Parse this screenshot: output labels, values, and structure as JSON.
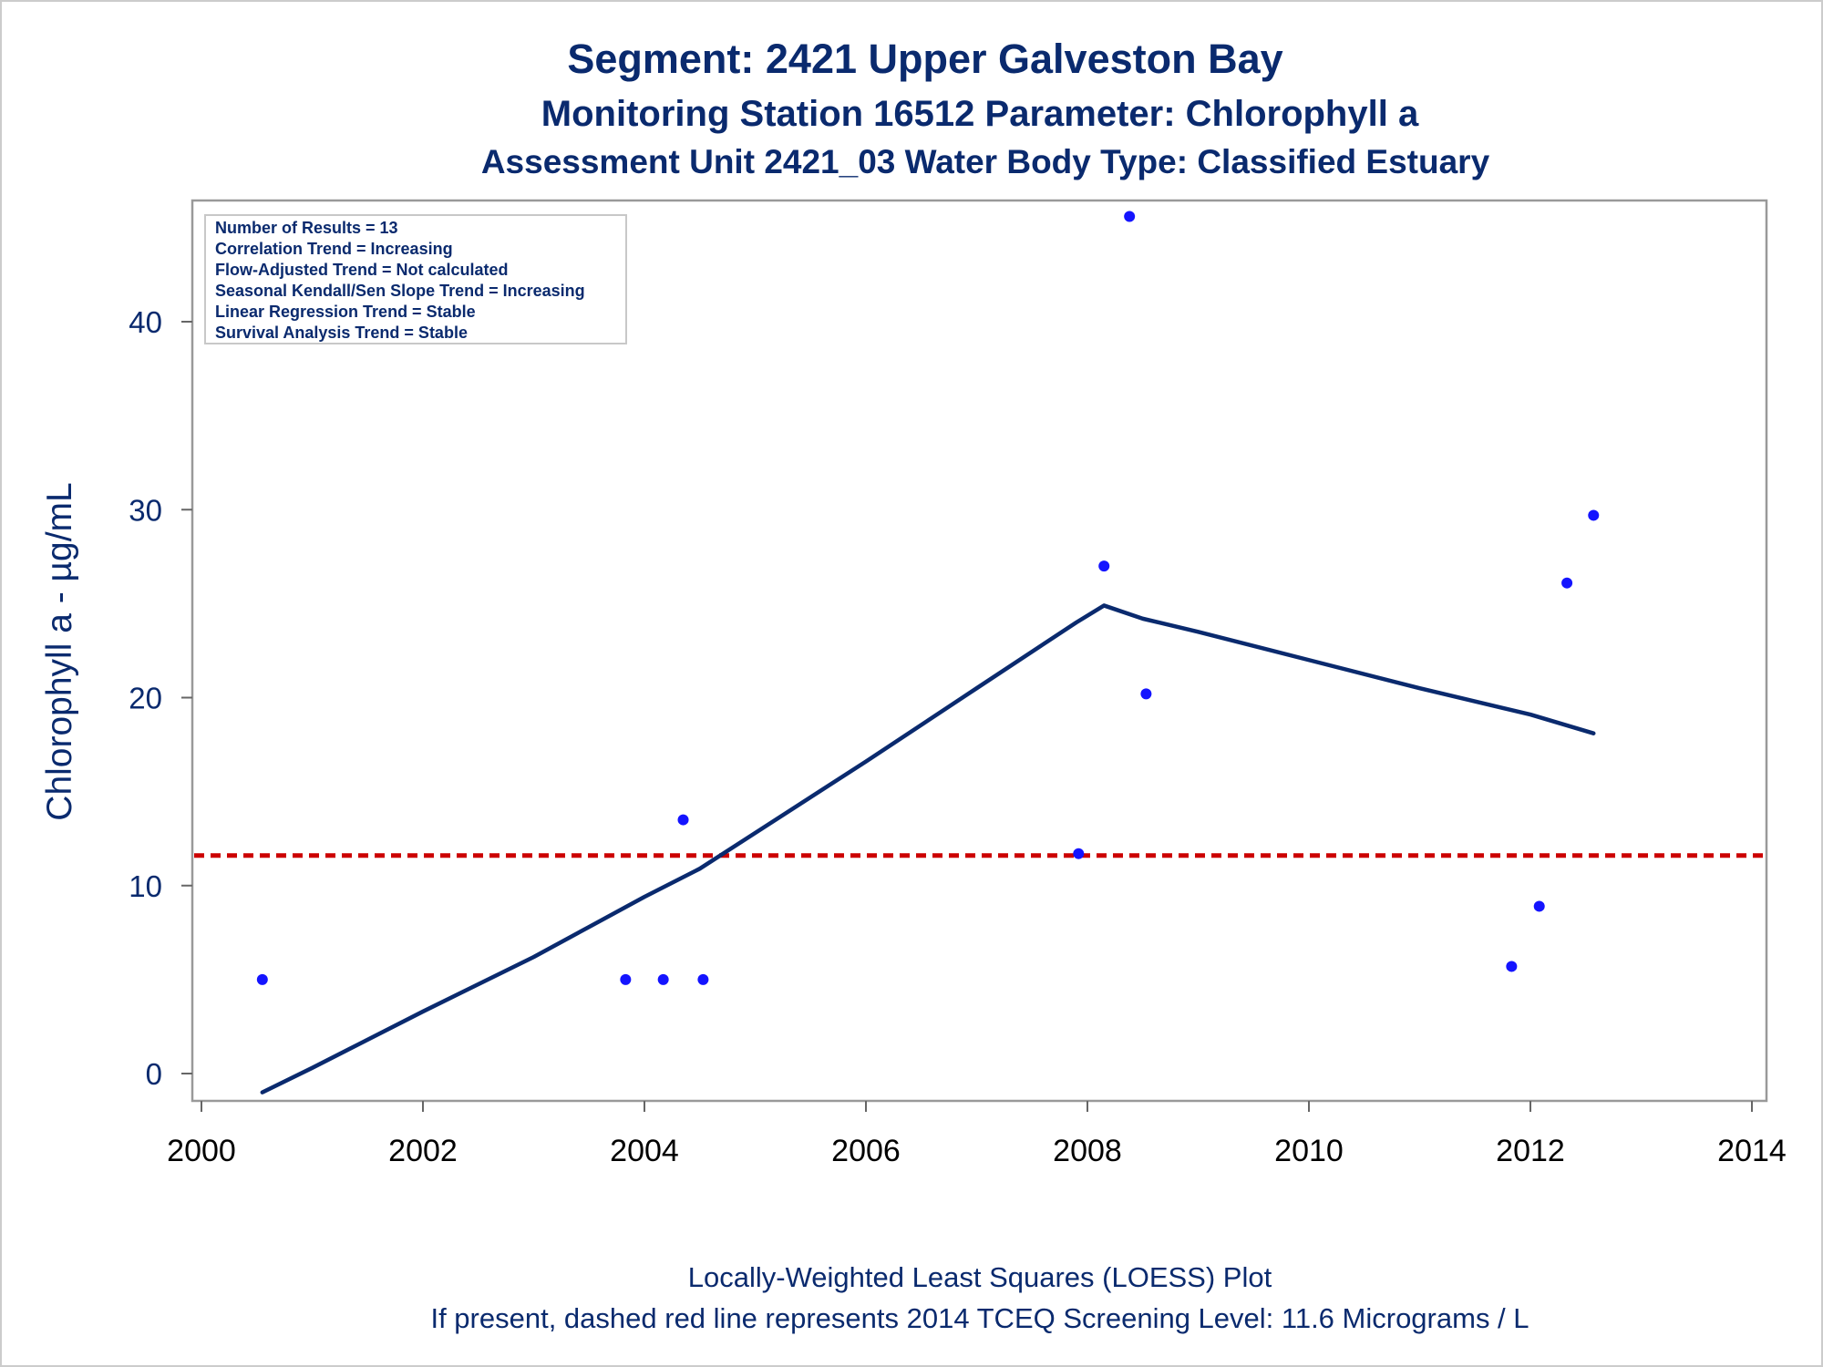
{
  "chart_data": {
    "type": "scatter",
    "title": "Segment: 2421  Upper Galveston Bay",
    "subtitle": "Monitoring Station 16512 Parameter: Chlorophyll a",
    "subtitle2": "Assessment Unit 2421_03   Water Body Type: Classified Estuary",
    "xlabel": "",
    "ylabel": "Chlorophyll a -  µg/mL",
    "xlim": [
      2000,
      2014
    ],
    "ylim": [
      -1.4,
      46.5
    ],
    "xticks": [
      "2000",
      "2002",
      "2004",
      "2006",
      "2008",
      "2010",
      "2012",
      "2014"
    ],
    "yticks": [
      "0",
      "10",
      "20",
      "30",
      "40"
    ],
    "grid": false,
    "colors": {
      "points": "#1414ff",
      "loess": "#0a2a6e",
      "screening_line": "#cc0000",
      "text": "#0a2a6e",
      "frame": "#999999"
    },
    "points": {
      "x": [
        2000.55,
        2003.83,
        2004.17,
        2004.35,
        2004.53,
        2007.92,
        2008.15,
        2008.38,
        2008.53,
        2011.83,
        2012.08,
        2012.33,
        2012.57
      ],
      "y": [
        5.0,
        5.0,
        5.0,
        13.5,
        5.0,
        11.7,
        27.0,
        45.6,
        20.2,
        5.7,
        8.9,
        26.1,
        29.7
      ]
    },
    "loess": {
      "x": [
        2000.55,
        2001.0,
        2002.0,
        2003.0,
        2004.0,
        2004.5,
        2005.0,
        2006.0,
        2007.0,
        2007.9,
        2008.15,
        2008.5,
        2009.0,
        2010.0,
        2011.0,
        2012.0,
        2012.57
      ],
      "y": [
        -1.0,
        0.3,
        3.3,
        6.2,
        9.4,
        10.9,
        12.8,
        16.6,
        20.5,
        24.0,
        24.9,
        24.2,
        23.5,
        22.0,
        20.5,
        19.1,
        18.1
      ]
    },
    "screening_level": 11.6,
    "stats_box": [
      "Number of Results = 13",
      "Correlation Trend = Increasing",
      "Flow-Adjusted Trend = Not calculated",
      "Seasonal Kendall/Sen Slope Trend = Increasing",
      "Linear Regression Trend = Stable",
      "Survival Analysis Trend = Stable"
    ],
    "footnotes": [
      "Locally-Weighted Least Squares (LOESS) Plot",
      "If present, dashed red line represents 2014 TCEQ Screening Level: 11.6 Micrograms / L"
    ]
  }
}
